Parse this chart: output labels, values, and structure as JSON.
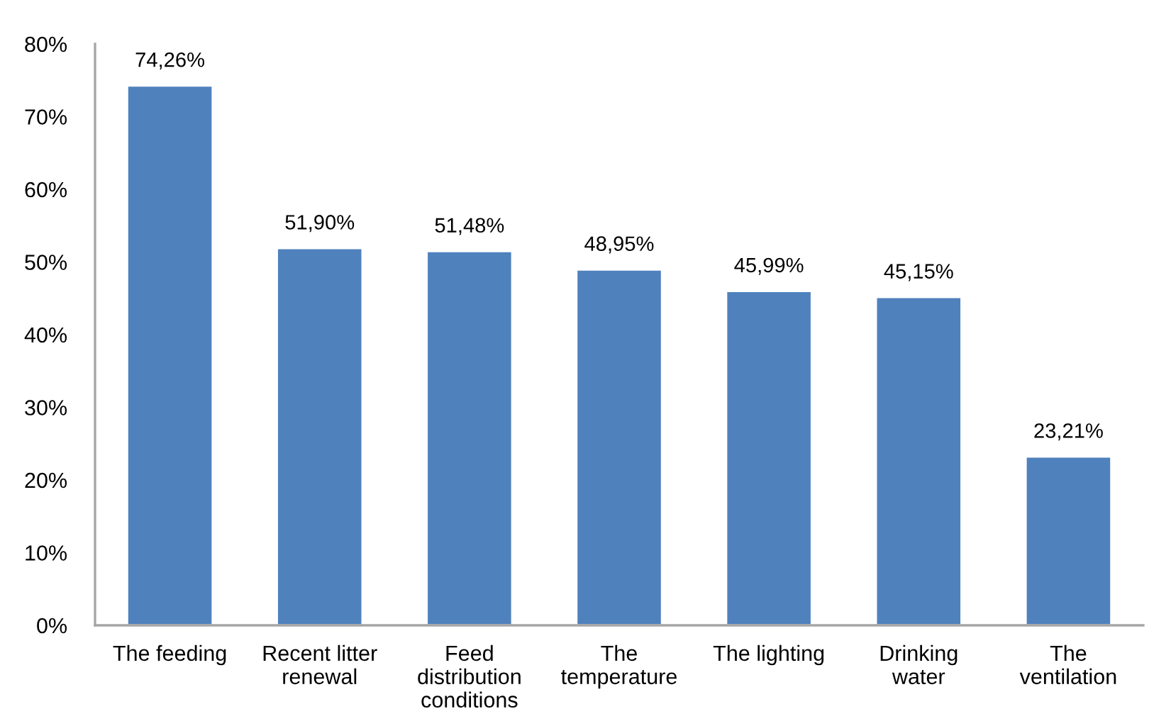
{
  "chart_data": {
    "type": "bar",
    "categories": [
      "The feeding",
      "Recent litter renewal",
      "Feed distribution conditions",
      "The temperature",
      "The lighting",
      "Drinking water",
      "The ventilation"
    ],
    "values": [
      74.26,
      51.9,
      51.48,
      48.95,
      45.99,
      45.15,
      23.21
    ],
    "value_labels": [
      "74,26%",
      "51,90%",
      "51,48%",
      "48,95%",
      "45,99%",
      "45,15%",
      "23,21%"
    ],
    "color": "#4f81bd",
    "ylim": [
      0,
      80
    ],
    "yticks": [
      {
        "value": 0,
        "label": "0%"
      },
      {
        "value": 10,
        "label": "10%"
      },
      {
        "value": 20,
        "label": "20%"
      },
      {
        "value": 30,
        "label": "30%"
      },
      {
        "value": 40,
        "label": "40%"
      },
      {
        "value": 50,
        "label": "50%"
      },
      {
        "value": 60,
        "label": "60%"
      },
      {
        "value": 70,
        "label": "70%"
      },
      {
        "value": 80,
        "label": "80%"
      }
    ]
  }
}
